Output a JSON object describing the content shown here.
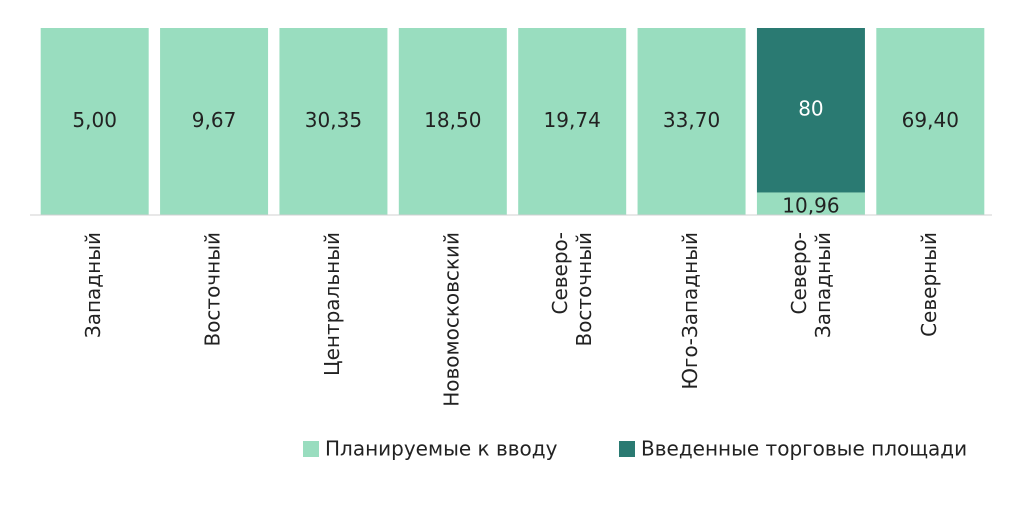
{
  "chart_data": {
    "type": "bar",
    "stacked_percent": true,
    "categories": [
      "Западный",
      "Восточный",
      "Центральный",
      "Новомосковский",
      "Северо-Восточный",
      "Юго-Западный",
      "Северо-Западный",
      "Северный"
    ],
    "series": [
      {
        "name": "Планируемые к вводу",
        "color": "#99ddbf",
        "values": [
          5.0,
          9.67,
          30.35,
          18.5,
          19.74,
          33.7,
          10.96,
          69.4
        ],
        "value_labels": [
          "5,00",
          "9,67",
          "30,35",
          "18,50",
          "19,74",
          "33,70",
          "10,96",
          "69,40"
        ]
      },
      {
        "name": "Введенные торговые площади",
        "color": "#2a7a72",
        "values": [
          null,
          null,
          null,
          null,
          null,
          null,
          80,
          null
        ]
      }
    ],
    "legend": "bottom-right"
  }
}
